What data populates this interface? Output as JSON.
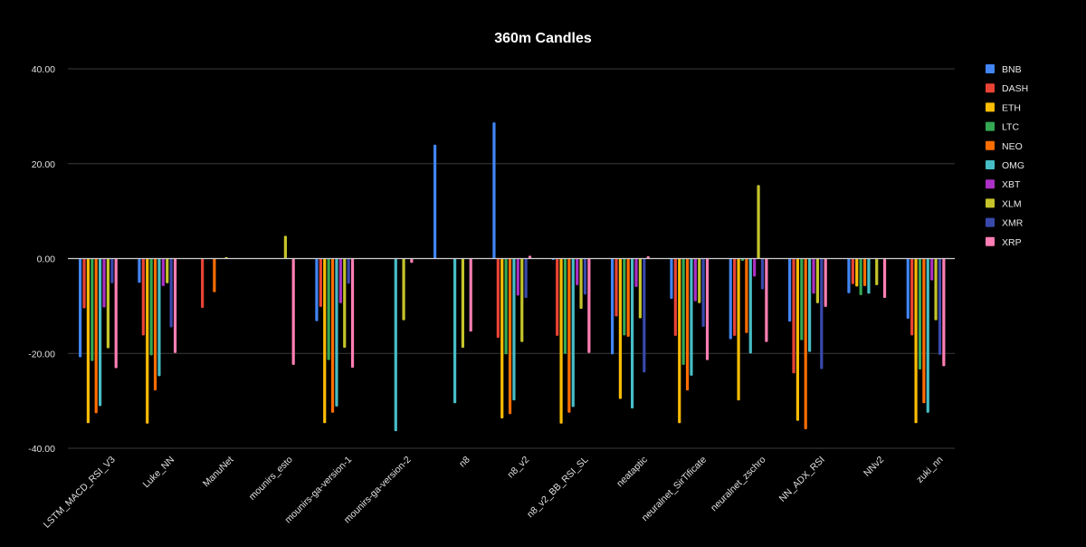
{
  "chart_data": {
    "type": "bar",
    "title": "360m Candles",
    "xlabel": "",
    "ylabel": "",
    "ylim": [
      -40,
      40
    ],
    "yticks": [
      "40.00",
      "20.00",
      "0.00",
      "-20.00",
      "-40.00"
    ],
    "ytick_values": [
      40,
      20,
      0,
      -20,
      -40
    ],
    "grid": true,
    "legend_position": "right",
    "categories": [
      "LSTM_MACD_RSI_V3",
      "Luke_NN",
      "ManuNet",
      "mounirs_esto",
      "mounirs-ga-version-1",
      "mounirs-ga-version-2",
      "n8",
      "n8_v2",
      "n8_v2_BB_RSI_SL",
      "neataptic",
      "neuralnet_SirTificate",
      "neuralnet_zschro",
      "NN_ADX_RSI",
      "NNv2",
      "zuki_nn"
    ],
    "series": [
      {
        "name": "BNB",
        "color": "#4285f4",
        "values": [
          -20.8,
          -5.1,
          0,
          0,
          -13.2,
          0,
          24.0,
          28.7,
          -0.3,
          -20.2,
          -8.5,
          -17.0,
          -13.3,
          -7.3,
          -12.7
        ]
      },
      {
        "name": "DASH",
        "color": "#ea4335",
        "values": [
          -10.5,
          -16.2,
          -10.4,
          0,
          -10.2,
          0,
          0,
          -16.7,
          -16.3,
          -12.2,
          -16.3,
          -16.3,
          -24.2,
          -5.4,
          -16.2
        ]
      },
      {
        "name": "ETH",
        "color": "#fbbc04",
        "values": [
          -34.7,
          -34.8,
          0,
          0,
          -34.7,
          0,
          0,
          -33.7,
          -34.8,
          -29.6,
          -34.7,
          -29.9,
          -34.2,
          -5.9,
          -34.7
        ]
      },
      {
        "name": "LTC",
        "color": "#34a853",
        "values": [
          -21.6,
          -20.4,
          0,
          0,
          -21.4,
          0,
          0,
          -20.2,
          -20.1,
          -16.2,
          -22.4,
          -0.5,
          -17.2,
          -7.7,
          -23.4
        ]
      },
      {
        "name": "NEO",
        "color": "#ff6d01",
        "values": [
          -32.6,
          -27.8,
          -7.1,
          0,
          -32.5,
          0,
          0,
          -32.8,
          -32.5,
          -16.5,
          -27.8,
          -15.7,
          -36.0,
          -5.8,
          -30.5
        ]
      },
      {
        "name": "OMG",
        "color": "#46bdc6",
        "values": [
          -31.1,
          -24.8,
          0,
          0,
          -31.2,
          -36.4,
          -30.5,
          -29.9,
          -31.3,
          -31.6,
          -24.7,
          -20.0,
          -19.7,
          -7.4,
          -32.5
        ]
      },
      {
        "name": "XBT",
        "color": "#ab30c4",
        "values": [
          -10.3,
          -5.8,
          0,
          0,
          -9.4,
          0,
          0,
          -7.8,
          -5.6,
          -6.0,
          -9.0,
          -3.8,
          -7.4,
          0,
          -4.6
        ]
      },
      {
        "name": "XLM",
        "color": "#c5c42a",
        "values": [
          -18.9,
          -5.2,
          0.3,
          4.8,
          -18.8,
          -13.0,
          -18.8,
          -17.6,
          -10.6,
          -12.6,
          -9.4,
          15.5,
          -9.4,
          -5.6,
          -13.0
        ]
      },
      {
        "name": "XMR",
        "color": "#3949ab",
        "values": [
          -5.2,
          -14.5,
          0,
          0,
          -5.3,
          0,
          0,
          -8.3,
          -7.6,
          -24.0,
          -14.4,
          -6.5,
          -23.3,
          0,
          -20.3
        ]
      },
      {
        "name": "XRP",
        "color": "#ff7eb3",
        "values": [
          -23.1,
          -19.9,
          0,
          -22.4,
          -23.0,
          -0.9,
          -15.4,
          0.6,
          -19.9,
          0.5,
          -21.4,
          -17.6,
          -10.2,
          -8.3,
          -22.7
        ]
      }
    ]
  }
}
